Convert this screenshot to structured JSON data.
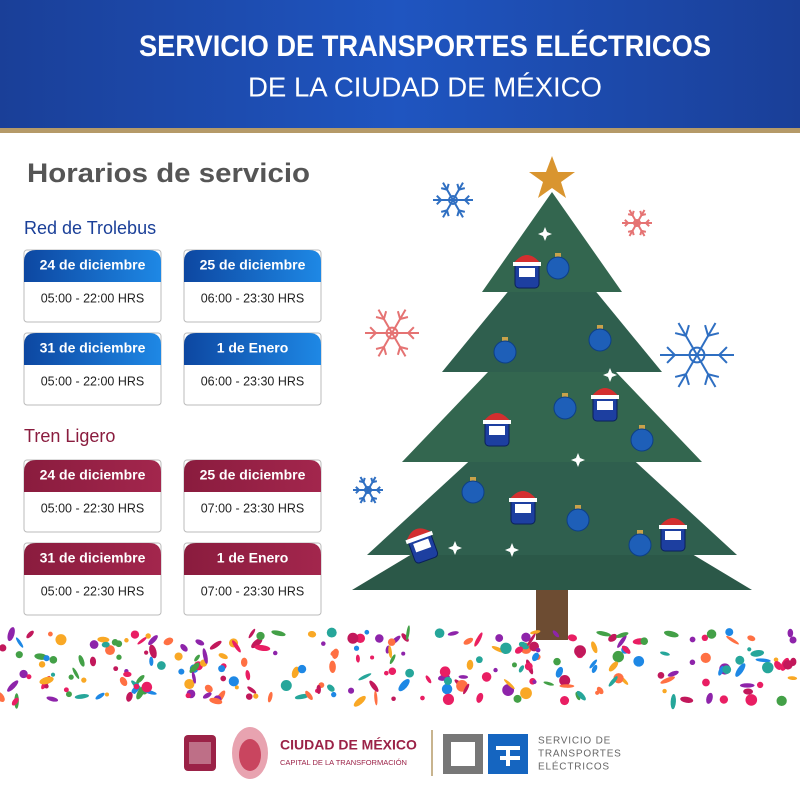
{
  "header": {
    "line1": "SERVICIO DE TRANSPORTES ELÉCTRICOS",
    "line2": "DE LA CIUDAD DE MÉXICO"
  },
  "title": "Horarios de servicio",
  "sections": [
    {
      "name": "Red de Trolebus",
      "schedules": [
        {
          "date": "24 de diciembre",
          "hours": "05:00 - 22:00 HRS"
        },
        {
          "date": "25 de diciembre",
          "hours": "06:00 - 23:30 HRS"
        },
        {
          "date": "31 de diciembre",
          "hours": "05:00 - 22:00 HRS"
        },
        {
          "date": "1 de Enero",
          "hours": "06:00 - 23:30 HRS"
        }
      ]
    },
    {
      "name": "Tren Ligero",
      "schedules": [
        {
          "date": "24 de diciembre",
          "hours": "05:00 - 22:30 HRS"
        },
        {
          "date": "25 de diciembre",
          "hours": "07:00 - 23:30 HRS"
        },
        {
          "date": "31 de diciembre",
          "hours": "05:00 - 22:30 HRS"
        },
        {
          "date": "1 de Enero",
          "hours": "07:00 - 23:30 HRS"
        }
      ]
    }
  ],
  "footer": {
    "cdmx": "CIUDAD DE MÉXICO",
    "cdmx_tagline": "CAPITAL DE LA TRANSFORMACIÓN",
    "ste_line1": "SERVICIO DE",
    "ste_line2": "TRANSPORTES",
    "ste_line3": "ELÉCTRICOS"
  }
}
